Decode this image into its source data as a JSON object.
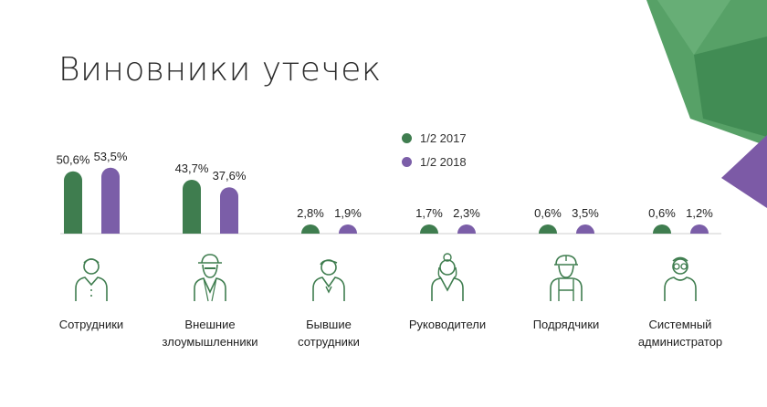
{
  "page": {
    "title": "Виновники утечек"
  },
  "colors": {
    "series_2017": "#3f7d4f",
    "series_2018": "#7b5ea8",
    "decor_green": "#4e9c5f",
    "decor_purple": "#7c5aa6",
    "baseline": "#cfcfcf"
  },
  "chart_data": {
    "type": "bar",
    "categories": [
      "Сотрудники",
      "Внешние злоумышленники",
      "Бывшие сотрудники",
      "Руководители",
      "Подрядчики",
      "Системный администратор"
    ],
    "category_lines": [
      [
        "Сотрудники"
      ],
      [
        "Внешние",
        "злоумышленники"
      ],
      [
        "Бывшие",
        "сотрудники"
      ],
      [
        "Руководители"
      ],
      [
        "Подрядчики"
      ],
      [
        "Системный",
        "администратор"
      ]
    ],
    "series": [
      {
        "name": "1/2 2017",
        "values": [
          50.6,
          43.7,
          2.8,
          1.7,
          0.6,
          0.6
        ],
        "labels": [
          "50,6%",
          "43,7%",
          "2,8%",
          "1,7%",
          "0,6%",
          "0,6%"
        ]
      },
      {
        "name": "1/2 2018",
        "values": [
          53.5,
          37.6,
          1.9,
          2.3,
          3.5,
          1.2
        ],
        "labels": [
          "53,5%",
          "37,6%",
          "1,9%",
          "2,3%",
          "3,5%",
          "1,2%"
        ]
      }
    ],
    "ylim": [
      0,
      100
    ],
    "grid": false,
    "legend_position": "top-center",
    "icons": [
      "employee-icon",
      "hacker-icon",
      "former-employee-icon",
      "executive-icon",
      "contractor-icon",
      "sysadmin-icon"
    ]
  }
}
